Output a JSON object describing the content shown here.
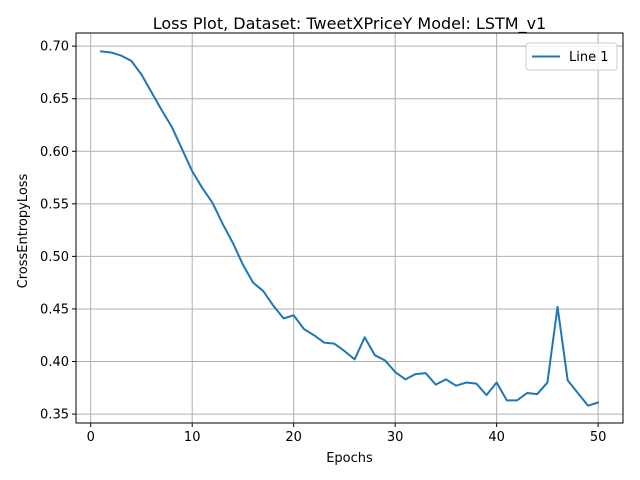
{
  "chart_data": {
    "type": "line",
    "title": "Loss Plot, Dataset: TweetXPriceY Model: LSTM_v1",
    "xlabel": "Epochs",
    "ylabel": "CrossEntropyLoss",
    "xlim": [
      -1.45,
      52.45
    ],
    "ylim": [
      0.3415,
      0.7125
    ],
    "xticks": [
      0,
      10,
      20,
      30,
      40,
      50
    ],
    "yticks": [
      0.35,
      0.4,
      0.45,
      0.5,
      0.55,
      0.6,
      0.65,
      0.7
    ],
    "xtick_labels": [
      "0",
      "10",
      "20",
      "30",
      "40",
      "50"
    ],
    "ytick_labels": [
      "0.35",
      "0.40",
      "0.45",
      "0.50",
      "0.55",
      "0.60",
      "0.65",
      "0.70"
    ],
    "grid": true,
    "legend_position": "top-right",
    "series": [
      {
        "name": "Line 1",
        "color": "#1f77b4",
        "x": [
          1,
          2,
          3,
          4,
          5,
          6,
          7,
          8,
          9,
          10,
          11,
          12,
          13,
          14,
          15,
          16,
          17,
          18,
          19,
          20,
          21,
          22,
          23,
          24,
          25,
          26,
          27,
          28,
          29,
          30,
          31,
          32,
          33,
          34,
          35,
          36,
          37,
          38,
          39,
          40,
          41,
          42,
          43,
          44,
          45,
          46,
          47,
          48,
          49,
          50
        ],
        "y": [
          0.695,
          0.694,
          0.691,
          0.686,
          0.673,
          0.656,
          0.639,
          0.623,
          0.602,
          0.581,
          0.565,
          0.551,
          0.531,
          0.513,
          0.492,
          0.475,
          0.467,
          0.453,
          0.441,
          0.444,
          0.431,
          0.425,
          0.418,
          0.417,
          0.41,
          0.402,
          0.423,
          0.406,
          0.401,
          0.39,
          0.383,
          0.388,
          0.389,
          0.378,
          0.383,
          0.377,
          0.38,
          0.379,
          0.368,
          0.38,
          0.363,
          0.363,
          0.37,
          0.369,
          0.38,
          0.452,
          0.382,
          0.37,
          0.358,
          0.361
        ]
      }
    ]
  }
}
